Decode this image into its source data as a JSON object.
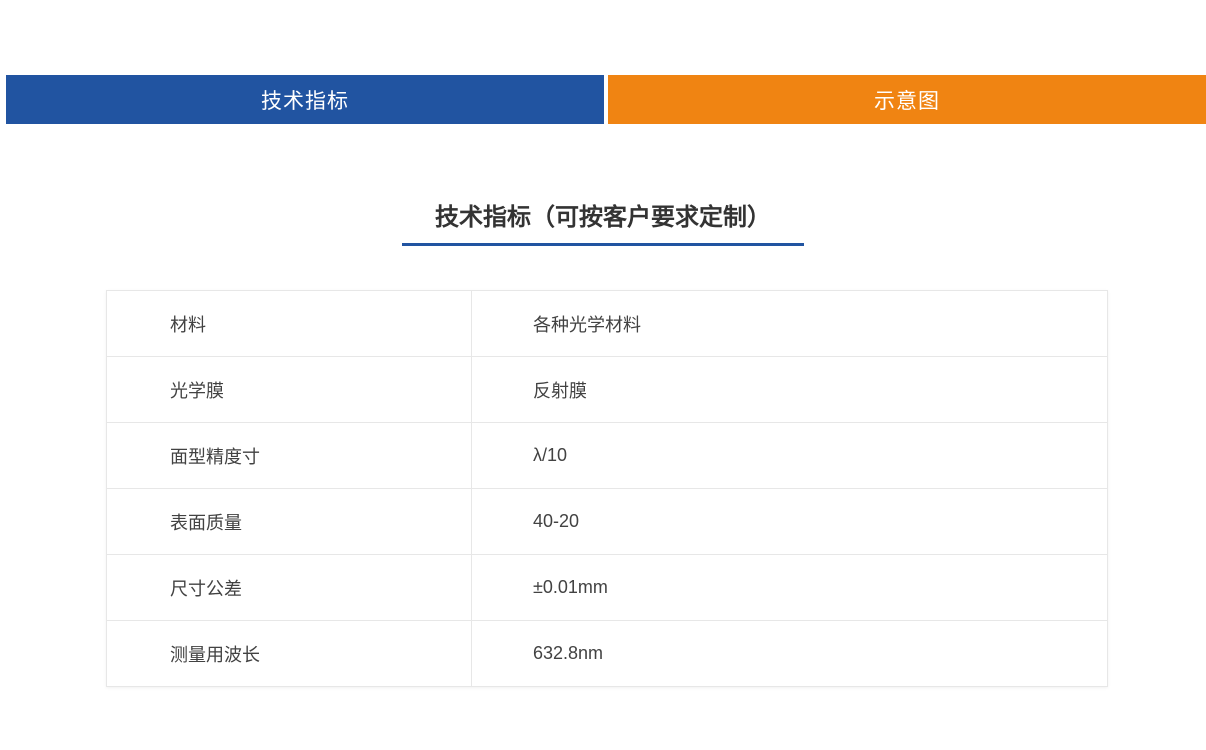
{
  "tabs": [
    {
      "label": "技术指标",
      "color": "#2154a1"
    },
    {
      "label": "示意图",
      "color": "#f08412"
    }
  ],
  "section": {
    "title": "技术指标（可按客户要求定制）",
    "underline_color": "#2154a1"
  },
  "table": {
    "rows": [
      {
        "label": "材料",
        "value": "各种光学材料"
      },
      {
        "label": "光学膜",
        "value": "反射膜"
      },
      {
        "label": "面型精度寸",
        "value": "λ/10"
      },
      {
        "label": "表面质量",
        "value": "40-20"
      },
      {
        "label": "尺寸公差",
        "value": "±0.01mm"
      },
      {
        "label": "测量用波长",
        "value": "632.8nm"
      }
    ]
  },
  "colors": {
    "tab_blue": "#2154a1",
    "tab_orange": "#f08412",
    "tab_text": "#ffffff",
    "accent_underline": "#2154a1",
    "title_text": "#333333",
    "table_text": "#424242",
    "table_border": "#e7e7e7",
    "background": "#ffffff"
  }
}
